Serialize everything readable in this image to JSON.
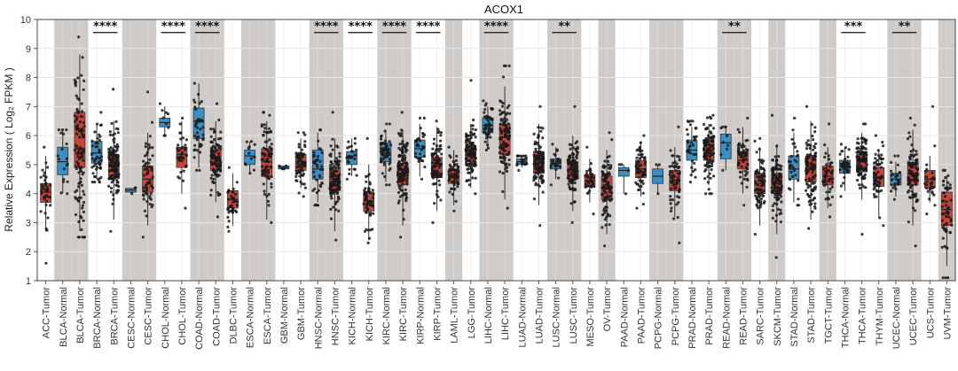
{
  "chart_data": {
    "type": "box",
    "title": "ACOX1",
    "ylabel": "Relative Expression ( Log₂ FPKM )",
    "xlabel": "",
    "ylim": [
      1,
      10
    ],
    "yticks": [
      1,
      2,
      3,
      4,
      5,
      6,
      7,
      8,
      9,
      10
    ],
    "colors": {
      "Normal": "#3a8fc4",
      "Tumor": "#c8443b",
      "shade": "#cfcbc8",
      "grid": "#e6e6e6"
    },
    "categories": [
      {
        "label": "ACC-Tumor",
        "group": "Tumor",
        "q1": 3.7,
        "median": 4.05,
        "q3": 4.35,
        "whisker_low": 2.7,
        "whisker_high": 5.3,
        "min": 1.6,
        "max": 5.6,
        "n": 40
      },
      {
        "label": "BLCA-Normal",
        "group": "Normal",
        "q1": 4.65,
        "median": 5.1,
        "q3": 5.6,
        "whisker_low": 4.0,
        "whisker_high": 6.2,
        "min": 4.0,
        "max": 6.2,
        "n": 18
      },
      {
        "label": "BLCA-Tumor",
        "group": "Tumor",
        "q1": 4.9,
        "median": 5.55,
        "q3": 6.8,
        "whisker_low": 2.7,
        "whisker_high": 8.8,
        "min": 2.5,
        "max": 9.4,
        "n": 110
      },
      {
        "label": "BRCA-Normal",
        "group": "Normal",
        "q1": 5.05,
        "median": 5.4,
        "q3": 5.8,
        "whisker_low": 4.5,
        "whisker_high": 6.4,
        "min": 4.4,
        "max": 6.8,
        "n": 50
      },
      {
        "label": "BRCA-Tumor",
        "group": "Tumor",
        "q1": 4.6,
        "median": 4.95,
        "q3": 5.35,
        "whisker_low": 3.1,
        "whisker_high": 6.5,
        "min": 2.7,
        "max": 7.6,
        "n": 130
      },
      {
        "label": "CESC-Normal",
        "group": "Normal",
        "q1": 4.05,
        "median": 4.12,
        "q3": 4.18,
        "whisker_low": 4.0,
        "whisker_high": 4.2,
        "min": 4.0,
        "max": 4.2,
        "n": 3
      },
      {
        "label": "CESC-Tumor",
        "group": "Tumor",
        "q1": 4.05,
        "median": 4.5,
        "q3": 4.95,
        "whisker_low": 2.9,
        "whisker_high": 6.1,
        "min": 2.5,
        "max": 7.5,
        "n": 60
      },
      {
        "label": "CHOL-Normal",
        "group": "Normal",
        "q1": 6.3,
        "median": 6.45,
        "q3": 6.6,
        "whisker_low": 6.0,
        "whisker_high": 7.0,
        "min": 6.0,
        "max": 7.1,
        "n": 9
      },
      {
        "label": "CHOL-Tumor",
        "group": "Tumor",
        "q1": 4.9,
        "median": 5.35,
        "q3": 5.6,
        "whisker_low": 4.0,
        "whisker_high": 6.5,
        "min": 3.5,
        "max": 6.6,
        "n": 36
      },
      {
        "label": "COAD-Normal",
        "group": "Normal",
        "q1": 5.9,
        "median": 6.5,
        "q3": 6.95,
        "whisker_low": 4.9,
        "whisker_high": 7.8,
        "min": 4.8,
        "max": 7.8,
        "n": 40
      },
      {
        "label": "COAD-Tumor",
        "group": "Tumor",
        "q1": 4.8,
        "median": 5.2,
        "q3": 5.5,
        "whisker_low": 3.7,
        "whisker_high": 6.5,
        "min": 3.2,
        "max": 7.1,
        "n": 100
      },
      {
        "label": "DLBC-Tumor",
        "group": "Tumor",
        "q1": 3.5,
        "median": 3.8,
        "q3": 4.1,
        "whisker_low": 2.9,
        "whisker_high": 4.7,
        "min": 2.7,
        "max": 4.9,
        "n": 40
      },
      {
        "label": "ESCA-Normal",
        "group": "Normal",
        "q1": 5.0,
        "median": 5.3,
        "q3": 5.5,
        "whisker_low": 4.7,
        "whisker_high": 5.8,
        "min": 4.7,
        "max": 5.8,
        "n": 12
      },
      {
        "label": "ESCA-Tumor",
        "group": "Tumor",
        "q1": 4.6,
        "median": 5.1,
        "q3": 5.55,
        "whisker_low": 3.1,
        "whisker_high": 6.5,
        "min": 3.0,
        "max": 6.8,
        "n": 80
      },
      {
        "label": "GBM-Normal",
        "group": "Normal",
        "q1": 4.85,
        "median": 4.9,
        "q3": 4.95,
        "whisker_low": 4.85,
        "whisker_high": 4.95,
        "min": 4.85,
        "max": 4.95,
        "n": 5
      },
      {
        "label": "GBM-Tumor",
        "group": "Tumor",
        "q1": 4.8,
        "median": 5.1,
        "q3": 5.35,
        "whisker_low": 4.2,
        "whisker_high": 5.9,
        "min": 3.9,
        "max": 6.1,
        "n": 70
      },
      {
        "label": "HNSC-Normal",
        "group": "Normal",
        "q1": 4.5,
        "median": 4.85,
        "q3": 5.5,
        "whisker_low": 3.7,
        "whisker_high": 6.1,
        "min": 3.6,
        "max": 6.2,
        "n": 40
      },
      {
        "label": "HNSC-Tumor",
        "group": "Tumor",
        "q1": 4.1,
        "median": 4.5,
        "q3": 4.85,
        "whisker_low": 2.7,
        "whisker_high": 5.9,
        "min": 2.4,
        "max": 6.8,
        "n": 120
      },
      {
        "label": "KICH-Normal",
        "group": "Normal",
        "q1": 5.0,
        "median": 5.3,
        "q3": 5.45,
        "whisker_low": 4.6,
        "whisker_high": 5.9,
        "min": 4.5,
        "max": 5.9,
        "n": 25
      },
      {
        "label": "KICH-Tumor",
        "group": "Tumor",
        "q1": 3.4,
        "median": 3.75,
        "q3": 4.05,
        "whisker_low": 2.4,
        "whisker_high": 5.0,
        "min": 2.3,
        "max": 5.9,
        "n": 60
      },
      {
        "label": "KIRC-Normal",
        "group": "Normal",
        "q1": 5.1,
        "median": 5.4,
        "q3": 5.75,
        "whisker_low": 4.4,
        "whisker_high": 6.2,
        "min": 4.3,
        "max": 6.4,
        "n": 60
      },
      {
        "label": "KIRC-Tumor",
        "group": "Tumor",
        "q1": 4.3,
        "median": 4.7,
        "q3": 5.05,
        "whisker_low": 2.9,
        "whisker_high": 6.2,
        "min": 2.5,
        "max": 6.8,
        "n": 130
      },
      {
        "label": "KIRP-Normal",
        "group": "Normal",
        "q1": 5.25,
        "median": 5.55,
        "q3": 5.85,
        "whisker_low": 4.6,
        "whisker_high": 6.4,
        "min": 4.5,
        "max": 6.6,
        "n": 35
      },
      {
        "label": "KIRP-Tumor",
        "group": "Tumor",
        "q1": 4.55,
        "median": 4.95,
        "q3": 5.25,
        "whisker_low": 3.4,
        "whisker_high": 6.3,
        "min": 3.0,
        "max": 6.5,
        "n": 90
      },
      {
        "label": "LAML-Tumor",
        "group": "Tumor",
        "q1": 4.35,
        "median": 4.6,
        "q3": 4.85,
        "whisker_low": 3.6,
        "whisker_high": 5.5,
        "min": 3.4,
        "max": 5.6,
        "n": 60
      },
      {
        "label": "LGG-Tumor",
        "group": "Tumor",
        "q1": 5.1,
        "median": 5.4,
        "q3": 5.65,
        "whisker_low": 4.2,
        "whisker_high": 6.3,
        "min": 4.0,
        "max": 7.9,
        "n": 120
      },
      {
        "label": "LIHC-Normal",
        "group": "Normal",
        "q1": 6.1,
        "median": 6.35,
        "q3": 6.6,
        "whisker_low": 5.6,
        "whisker_high": 7.0,
        "min": 5.5,
        "max": 7.2,
        "n": 45
      },
      {
        "label": "LIHC-Tumor",
        "group": "Tumor",
        "q1": 5.35,
        "median": 5.95,
        "q3": 6.4,
        "whisker_low": 3.8,
        "whisker_high": 7.7,
        "min": 3.5,
        "max": 8.4,
        "n": 110
      },
      {
        "label": "LUAD-Normal",
        "group": "Normal",
        "q1": 5.0,
        "median": 5.1,
        "q3": 5.2,
        "whisker_low": 4.9,
        "whisker_high": 5.3,
        "min": 4.8,
        "max": 5.3,
        "n": 20
      },
      {
        "label": "LUAD-Tumor",
        "group": "Tumor",
        "q1": 4.7,
        "median": 5.05,
        "q3": 5.45,
        "whisker_low": 3.6,
        "whisker_high": 6.4,
        "min": 2.9,
        "max": 7.0,
        "n": 110
      },
      {
        "label": "LUSC-Normal",
        "group": "Normal",
        "q1": 4.85,
        "median": 5.05,
        "q3": 5.2,
        "whisker_low": 4.5,
        "whisker_high": 5.6,
        "min": 4.3,
        "max": 5.7,
        "n": 25
      },
      {
        "label": "LUSC-Tumor",
        "group": "Tumor",
        "q1": 4.5,
        "median": 4.85,
        "q3": 5.1,
        "whisker_low": 3.4,
        "whisker_high": 6.0,
        "min": 3.0,
        "max": 7.0,
        "n": 110
      },
      {
        "label": "MESO-Tumor",
        "group": "Tumor",
        "q1": 4.25,
        "median": 4.45,
        "q3": 4.65,
        "whisker_low": 3.7,
        "whisker_high": 5.2,
        "min": 3.3,
        "max": 5.6,
        "n": 40
      },
      {
        "label": "OV-Tumor",
        "group": "Tumor",
        "q1": 3.8,
        "median": 4.2,
        "q3": 4.6,
        "whisker_low": 2.6,
        "whisker_high": 5.5,
        "min": 2.2,
        "max": 6.1,
        "n": 90
      },
      {
        "label": "PAAD-Normal",
        "group": "Normal",
        "q1": 4.6,
        "median": 4.8,
        "q3": 4.9,
        "whisker_low": 4.0,
        "whisker_high": 5.0,
        "min": 4.0,
        "max": 5.0,
        "n": 4
      },
      {
        "label": "PAAD-Tumor",
        "group": "Tumor",
        "q1": 4.55,
        "median": 4.85,
        "q3": 5.15,
        "whisker_low": 3.9,
        "whisker_high": 5.8,
        "min": 3.5,
        "max": 6.0,
        "n": 60
      },
      {
        "label": "PCPG-Normal",
        "group": "Normal",
        "q1": 4.35,
        "median": 4.6,
        "q3": 4.85,
        "whisker_low": 4.0,
        "whisker_high": 5.0,
        "min": 4.0,
        "max": 5.0,
        "n": 3
      },
      {
        "label": "PCPG-Tumor",
        "group": "Tumor",
        "q1": 4.1,
        "median": 4.45,
        "q3": 4.8,
        "whisker_low": 3.2,
        "whisker_high": 5.6,
        "min": 2.3,
        "max": 6.3,
        "n": 60
      },
      {
        "label": "PRAD-Normal",
        "group": "Normal",
        "q1": 5.15,
        "median": 5.5,
        "q3": 5.85,
        "whisker_low": 4.6,
        "whisker_high": 6.3,
        "min": 4.4,
        "max": 6.5,
        "n": 35
      },
      {
        "label": "PRAD-Tumor",
        "group": "Tumor",
        "q1": 5.15,
        "median": 5.5,
        "q3": 5.85,
        "whisker_low": 4.3,
        "whisker_high": 6.4,
        "min": 4.0,
        "max": 6.7,
        "n": 100
      },
      {
        "label": "READ-Normal",
        "group": "Normal",
        "q1": 5.2,
        "median": 5.75,
        "q3": 6.05,
        "whisker_low": 4.8,
        "whisker_high": 6.3,
        "min": 4.8,
        "max": 6.3,
        "n": 10
      },
      {
        "label": "READ-Tumor",
        "group": "Tumor",
        "q1": 4.85,
        "median": 5.15,
        "q3": 5.45,
        "whisker_low": 4.0,
        "whisker_high": 6.3,
        "min": 3.6,
        "max": 6.6,
        "n": 60
      },
      {
        "label": "SARC-Tumor",
        "group": "Tumor",
        "q1": 4.0,
        "median": 4.35,
        "q3": 4.7,
        "whisker_low": 2.9,
        "whisker_high": 5.6,
        "min": 2.6,
        "max": 5.9,
        "n": 80
      },
      {
        "label": "SKCM-Tumor",
        "group": "Tumor",
        "q1": 4.0,
        "median": 4.35,
        "q3": 4.7,
        "whisker_low": 2.6,
        "whisker_high": 5.7,
        "min": 1.8,
        "max": 6.7,
        "n": 110
      },
      {
        "label": "STAD-Normal",
        "group": "Normal",
        "q1": 4.5,
        "median": 4.85,
        "q3": 5.3,
        "whisker_low": 3.7,
        "whisker_high": 6.1,
        "min": 3.6,
        "max": 6.6,
        "n": 30
      },
      {
        "label": "STAD-Tumor",
        "group": "Tumor",
        "q1": 4.4,
        "median": 4.85,
        "q3": 5.3,
        "whisker_low": 3.1,
        "whisker_high": 6.5,
        "min": 2.8,
        "max": 7.0,
        "n": 100
      },
      {
        "label": "TGCT-Tumor",
        "group": "Tumor",
        "q1": 4.3,
        "median": 4.6,
        "q3": 4.95,
        "whisker_low": 3.5,
        "whisker_high": 5.6,
        "min": 3.2,
        "max": 6.4,
        "n": 50
      },
      {
        "label": "THCA-Normal",
        "group": "Normal",
        "q1": 4.7,
        "median": 4.95,
        "q3": 5.15,
        "whisker_low": 4.1,
        "whisker_high": 5.6,
        "min": 3.9,
        "max": 5.7,
        "n": 40
      },
      {
        "label": "THCA-Tumor",
        "group": "Tumor",
        "q1": 4.75,
        "median": 5.1,
        "q3": 5.35,
        "whisker_low": 3.8,
        "whisker_high": 6.1,
        "min": 2.6,
        "max": 6.4,
        "n": 110
      },
      {
        "label": "THYM-Tumor",
        "group": "Tumor",
        "q1": 4.25,
        "median": 4.55,
        "q3": 4.9,
        "whisker_low": 3.2,
        "whisker_high": 5.5,
        "min": 2.9,
        "max": 6.0,
        "n": 60
      },
      {
        "label": "UCEC-Normal",
        "group": "Normal",
        "q1": 4.3,
        "median": 4.5,
        "q3": 4.7,
        "whisker_low": 3.9,
        "whisker_high": 5.1,
        "min": 3.8,
        "max": 5.3,
        "n": 25
      },
      {
        "label": "UCEC-Tumor",
        "group": "Tumor",
        "q1": 4.3,
        "median": 4.7,
        "q3": 5.05,
        "whisker_low": 2.9,
        "whisker_high": 6.2,
        "min": 2.2,
        "max": 6.6,
        "n": 100
      },
      {
        "label": "UCS-Tumor",
        "group": "Tumor",
        "q1": 4.2,
        "median": 4.5,
        "q3": 4.8,
        "whisker_low": 3.7,
        "whisker_high": 5.3,
        "min": 3.3,
        "max": 7.0,
        "n": 30
      },
      {
        "label": "UVM-Tumor",
        "group": "Tumor",
        "q1": 2.9,
        "median": 3.45,
        "q3": 4.05,
        "whisker_low": 1.5,
        "whisker_high": 4.6,
        "min": 1.1,
        "max": 4.8,
        "n": 60
      }
    ],
    "shaded_categories": [
      "BLCA-Normal",
      "BLCA-Tumor",
      "CESC-Normal",
      "CESC-Tumor",
      "COAD-Normal",
      "COAD-Tumor",
      "ESCA-Normal",
      "ESCA-Tumor",
      "HNSC-Normal",
      "HNSC-Tumor",
      "KIRC-Normal",
      "KIRC-Tumor",
      "LAML-Tumor",
      "LIHC-Normal",
      "LIHC-Tumor",
      "LUSC-Normal",
      "LUSC-Tumor",
      "OV-Tumor",
      "PCPG-Normal",
      "PCPG-Tumor",
      "READ-Normal",
      "READ-Tumor",
      "SKCM-Tumor",
      "TGCT-Tumor",
      "UCEC-Normal",
      "UCEC-Tumor",
      "UVM-Tumor"
    ],
    "significance": [
      {
        "from": "BRCA-Normal",
        "to": "BRCA-Tumor",
        "label": "****"
      },
      {
        "from": "CHOL-Normal",
        "to": "CHOL-Tumor",
        "label": "****"
      },
      {
        "from": "COAD-Normal",
        "to": "COAD-Tumor",
        "label": "****"
      },
      {
        "from": "HNSC-Normal",
        "to": "HNSC-Tumor",
        "label": "****"
      },
      {
        "from": "KICH-Normal",
        "to": "KICH-Tumor",
        "label": "****"
      },
      {
        "from": "KIRC-Normal",
        "to": "KIRC-Tumor",
        "label": "****"
      },
      {
        "from": "KIRP-Normal",
        "to": "KIRP-Tumor",
        "label": "****"
      },
      {
        "from": "LIHC-Normal",
        "to": "LIHC-Tumor",
        "label": "****"
      },
      {
        "from": "LUSC-Normal",
        "to": "LUSC-Tumor",
        "label": "**"
      },
      {
        "from": "READ-Normal",
        "to": "READ-Tumor",
        "label": "**"
      },
      {
        "from": "THCA-Normal",
        "to": "THCA-Tumor",
        "label": "***"
      },
      {
        "from": "UCEC-Normal",
        "to": "UCEC-Tumor",
        "label": "**"
      }
    ]
  }
}
